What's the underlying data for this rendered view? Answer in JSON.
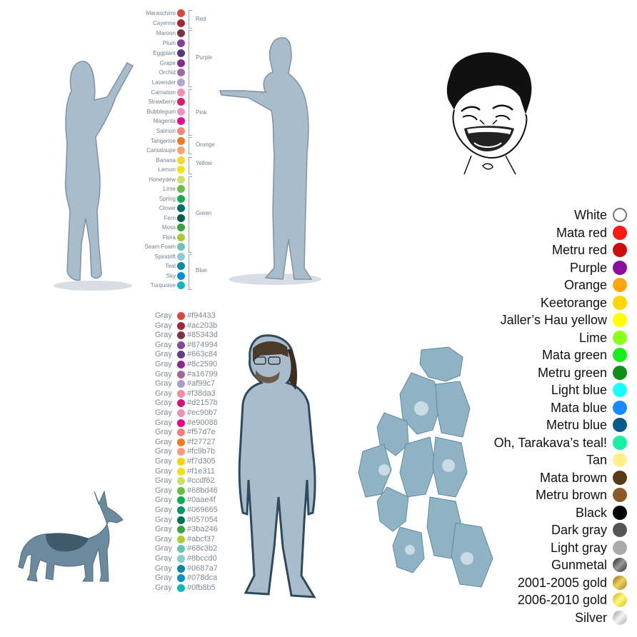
{
  "top_colors": [
    {
      "name": "Maraschino",
      "color": "#d7483f"
    },
    {
      "name": "Cayenne",
      "color": "#a32a33"
    },
    {
      "name": "Maroon",
      "color": "#7d3238"
    },
    {
      "name": "Plum",
      "color": "#874099"
    },
    {
      "name": "Eggplant",
      "color": "#5e3580"
    },
    {
      "name": "Grape",
      "color": "#8a2a8c"
    },
    {
      "name": "Orchid",
      "color": "#a16aa0"
    },
    {
      "name": "Lavender",
      "color": "#b1a4cf"
    },
    {
      "name": "Carnation",
      "color": "#f08fb2"
    },
    {
      "name": "Strawberry",
      "color": "#d2206b"
    },
    {
      "name": "Bubblegum",
      "color": "#ee93c6"
    },
    {
      "name": "Magenta",
      "color": "#e10d86"
    },
    {
      "name": "Salmon",
      "color": "#f2867a"
    },
    {
      "name": "Tangerine",
      "color": "#f27827"
    },
    {
      "name": "Cantaloupe",
      "color": "#f9a27a"
    },
    {
      "name": "Banana",
      "color": "#f7d52d"
    },
    {
      "name": "Lemon",
      "color": "#f0e51a"
    },
    {
      "name": "Honeydew",
      "color": "#cce06a"
    },
    {
      "name": "Lime",
      "color": "#6abe47"
    },
    {
      "name": "Spring",
      "color": "#18a850"
    },
    {
      "name": "Clover",
      "color": "#066b62"
    },
    {
      "name": "Fern",
      "color": "#055c4f"
    },
    {
      "name": "Moss",
      "color": "#3ba246"
    },
    {
      "name": "Flora",
      "color": "#abc83b"
    },
    {
      "name": "Seam Foam",
      "color": "#6ac4b7"
    },
    {
      "name": "Spindrift",
      "color": "#8bcdd1"
    },
    {
      "name": "Teal",
      "color": "#0689a8"
    },
    {
      "name": "Sky",
      "color": "#0c8ddb"
    },
    {
      "name": "Turquoise",
      "color": "#10b5c5"
    }
  ],
  "top_groups": [
    "Red",
    "Purple",
    "Pink",
    "Orange",
    "Yellow",
    "Green",
    "Blue"
  ],
  "gray_word": "Gray",
  "hex_colors": [
    {
      "hex": "#f94433",
      "color": "#d9463c"
    },
    {
      "hex": "#ac203b",
      "color": "#a32536"
    },
    {
      "hex": "#85343d",
      "color": "#80343b"
    },
    {
      "hex": "#874994",
      "color": "#874994"
    },
    {
      "hex": "#663c84",
      "color": "#663c84"
    },
    {
      "hex": "#8c2590",
      "color": "#8c2590"
    },
    {
      "hex": "#a16799",
      "color": "#a16799"
    },
    {
      "hex": "#af99c7",
      "color": "#af99c7"
    },
    {
      "hex": "#f38da3",
      "color": "#f38da3"
    },
    {
      "hex": "#d2157b",
      "color": "#d2157b"
    },
    {
      "hex": "#ec90b7",
      "color": "#ec90b7"
    },
    {
      "hex": "#e90086",
      "color": "#e90086"
    },
    {
      "hex": "#f57d7e",
      "color": "#f57d7e"
    },
    {
      "hex": "#f27727",
      "color": "#f27727"
    },
    {
      "hex": "#fc9b7b",
      "color": "#fc9b7b"
    },
    {
      "hex": "#f7d305",
      "color": "#f7d305"
    },
    {
      "hex": "#f1e311",
      "color": "#f1e311"
    },
    {
      "hex": "#ccdf62",
      "color": "#ccdf62"
    },
    {
      "hex": "#68bd46",
      "color": "#68bd46"
    },
    {
      "hex": "#0aae4f",
      "color": "#0aae4f"
    },
    {
      "hex": "#069665",
      "color": "#069665"
    },
    {
      "hex": "#057054",
      "color": "#057054"
    },
    {
      "hex": "#3ba246",
      "color": "#3ba246"
    },
    {
      "hex": "#abcf37",
      "color": "#abcf37"
    },
    {
      "hex": "#68c3b2",
      "color": "#68c3b2"
    },
    {
      "hex": "#8bccd0",
      "color": "#8bccd0"
    },
    {
      "hex": "#0687a7",
      "color": "#0687a7"
    },
    {
      "hex": "#078dca",
      "color": "#078dca"
    },
    {
      "hex": "#0fb8b5",
      "color": "#0fb8b5"
    }
  ],
  "legend": [
    {
      "label": "White",
      "color": "#ffffff"
    },
    {
      "label": "Mata red",
      "color": "#ff1a1a"
    },
    {
      "label": "Metru red",
      "color": "#cc0e0e"
    },
    {
      "label": "Purple",
      "color": "#8a0f9a"
    },
    {
      "label": "Orange",
      "color": "#ffa50f"
    },
    {
      "label": "Keetorange",
      "color": "#ffd500"
    },
    {
      "label": "Jaller’s Hau yellow",
      "color": "#ffff00"
    },
    {
      "label": "Lime",
      "color": "#8cff1a"
    },
    {
      "label": "Mata green",
      "color": "#1aee1a"
    },
    {
      "label": "Metru green",
      "color": "#0d8f1a"
    },
    {
      "label": "Light blue",
      "color": "#1affff"
    },
    {
      "label": "Mata blue",
      "color": "#1a8aff"
    },
    {
      "label": "Metru blue",
      "color": "#0a5a8a"
    },
    {
      "label": "Oh, Tarakava’s teal!",
      "color": "#1aeea0"
    },
    {
      "label": "Tan",
      "color": "#fff08a"
    },
    {
      "label": "Mata brown",
      "color": "#5a3a14"
    },
    {
      "label": "Metru brown",
      "color": "#8a5a2a"
    },
    {
      "label": "Black",
      "color": "#050505"
    },
    {
      "label": "Dark gray",
      "color": "#555555"
    },
    {
      "label": "Light gray",
      "color": "#aaaaaa"
    },
    {
      "label": "Gunmetal",
      "color": "#444444"
    },
    {
      "label": "2001-2005 gold",
      "color": "#c9a227"
    },
    {
      "label": "2006-2010 gold",
      "color": "#f0dc20"
    },
    {
      "label": "Silver",
      "color": "#cccccc"
    }
  ]
}
